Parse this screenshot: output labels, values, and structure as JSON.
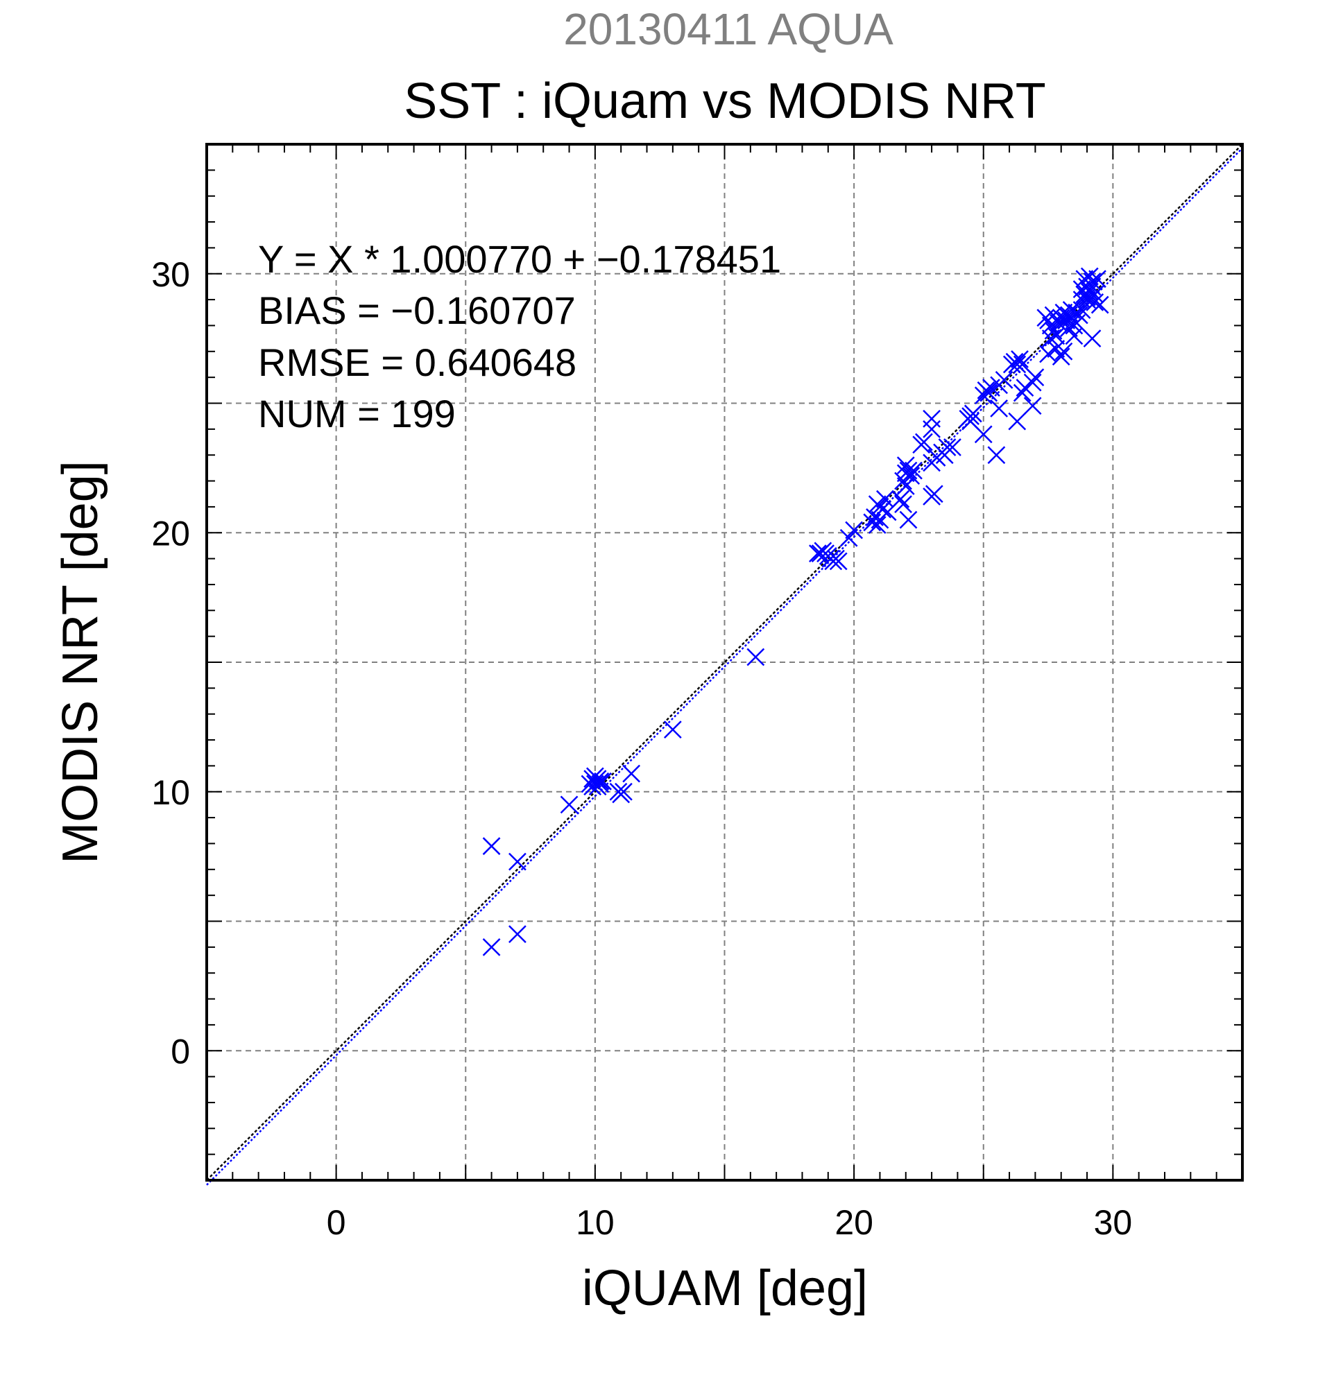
{
  "chart_data": {
    "type": "scatter",
    "title": "20130411 AQUA",
    "subtitle": "SST : iQuam vs MODIS NRT",
    "xlabel": "iQUAM [deg]",
    "ylabel": "MODIS NRT [deg]",
    "xlim": [
      -5,
      35
    ],
    "ylim": [
      -5,
      35
    ],
    "xticks": [
      0,
      10,
      20,
      30
    ],
    "yticks": [
      0,
      10,
      20,
      30
    ],
    "xtick_labels": [
      "0",
      "10",
      "20",
      "30"
    ],
    "ytick_labels": [
      "0",
      "10",
      "20",
      "30"
    ],
    "grid": true,
    "marker": "x",
    "series_color": "#0000ff",
    "stats": {
      "equation": "Y = X * 1.000770 + −0.178451",
      "bias": "BIAS = −0.160707",
      "rmse": "RMSE = 0.640648",
      "num": "NUM = 199"
    },
    "fit_line": {
      "slope": 1.00077,
      "intercept": -0.178451,
      "color": "#0000ff"
    },
    "reference_line": {
      "slope": 1,
      "intercept": 0,
      "color": "#000000"
    },
    "points": [
      [
        6.0,
        7.9
      ],
      [
        6.0,
        4.0
      ],
      [
        7.0,
        7.3
      ],
      [
        7.0,
        4.5
      ],
      [
        9.0,
        9.5
      ],
      [
        9.9,
        10.2
      ],
      [
        9.9,
        10.5
      ],
      [
        10.0,
        10.3
      ],
      [
        10.0,
        10.6
      ],
      [
        10.1,
        10.2
      ],
      [
        10.2,
        10.4
      ],
      [
        10.2,
        10.3
      ],
      [
        10.3,
        10.4
      ],
      [
        10.1,
        10.5
      ],
      [
        9.8,
        10.3
      ],
      [
        10.9,
        10.0
      ],
      [
        11.0,
        9.9
      ],
      [
        11.1,
        10.0
      ],
      [
        11.4,
        10.7
      ],
      [
        13.0,
        12.4
      ],
      [
        16.2,
        15.2
      ],
      [
        18.6,
        19.2
      ],
      [
        18.7,
        19.2
      ],
      [
        18.8,
        19.3
      ],
      [
        18.9,
        19.2
      ],
      [
        19.0,
        19.1
      ],
      [
        19.1,
        19.0
      ],
      [
        19.2,
        18.9
      ],
      [
        19.3,
        19.0
      ],
      [
        19.4,
        18.9
      ],
      [
        19.8,
        19.8
      ],
      [
        20.0,
        20.1
      ],
      [
        20.7,
        20.4
      ],
      [
        20.8,
        20.6
      ],
      [
        20.9,
        20.3
      ],
      [
        21.0,
        20.5
      ],
      [
        21.0,
        21.0
      ],
      [
        21.1,
        20.9
      ],
      [
        21.2,
        21.3
      ],
      [
        20.9,
        21.1
      ],
      [
        21.3,
        20.8
      ],
      [
        21.8,
        21.3
      ],
      [
        21.9,
        21.1
      ],
      [
        22.0,
        21.8
      ],
      [
        22.0,
        22.3
      ],
      [
        21.9,
        22.0
      ],
      [
        22.1,
        22.4
      ],
      [
        22.2,
        22.2
      ],
      [
        22.3,
        22.4
      ],
      [
        22.0,
        22.6
      ],
      [
        22.1,
        20.5
      ],
      [
        22.6,
        23.4
      ],
      [
        22.7,
        23.5
      ],
      [
        23.0,
        24.0
      ],
      [
        23.0,
        24.4
      ],
      [
        23.0,
        21.4
      ],
      [
        23.1,
        21.5
      ],
      [
        23.0,
        22.7
      ],
      [
        23.2,
        22.9
      ],
      [
        23.4,
        23.1
      ],
      [
        23.6,
        23.3
      ],
      [
        23.5,
        23.0
      ],
      [
        23.8,
        23.3
      ],
      [
        24.4,
        24.4
      ],
      [
        24.5,
        24.5
      ],
      [
        24.6,
        24.6
      ],
      [
        24.5,
        24.3
      ],
      [
        25.0,
        25.3
      ],
      [
        25.1,
        25.5
      ],
      [
        25.2,
        25.4
      ],
      [
        25.3,
        25.6
      ],
      [
        25.0,
        23.8
      ],
      [
        25.5,
        23.0
      ],
      [
        25.6,
        24.8
      ],
      [
        25.6,
        25.7
      ],
      [
        25.8,
        25.9
      ],
      [
        26.1,
        26.5
      ],
      [
        26.2,
        26.6
      ],
      [
        26.3,
        26.5
      ],
      [
        26.4,
        26.7
      ],
      [
        26.5,
        26.5
      ],
      [
        26.3,
        24.3
      ],
      [
        26.5,
        25.4
      ],
      [
        26.6,
        25.6
      ],
      [
        26.9,
        24.9
      ],
      [
        26.9,
        25.8
      ],
      [
        27.0,
        26.0
      ],
      [
        27.5,
        28.2
      ],
      [
        27.6,
        28.0
      ],
      [
        27.7,
        27.8
      ],
      [
        27.8,
        27.6
      ],
      [
        27.9,
        28.1
      ],
      [
        27.6,
        27.5
      ],
      [
        27.5,
        26.9
      ],
      [
        27.8,
        27.1
      ],
      [
        27.7,
        28.4
      ],
      [
        28.0,
        28.3
      ],
      [
        28.1,
        28.5
      ],
      [
        28.2,
        28.2
      ],
      [
        28.3,
        27.9
      ],
      [
        28.0,
        26.8
      ],
      [
        28.1,
        27.0
      ],
      [
        28.4,
        28.3
      ],
      [
        28.5,
        28.0
      ],
      [
        28.6,
        28.1
      ],
      [
        28.4,
        28.6
      ],
      [
        28.6,
        28.5
      ],
      [
        28.7,
        28.4
      ],
      [
        28.5,
        27.6
      ],
      [
        28.8,
        29.0
      ],
      [
        28.8,
        29.4
      ],
      [
        28.9,
        29.2
      ],
      [
        29.0,
        29.5
      ],
      [
        28.9,
        29.8
      ],
      [
        29.1,
        29.9
      ],
      [
        29.2,
        29.7
      ],
      [
        29.0,
        29.1
      ],
      [
        29.1,
        29.3
      ],
      [
        29.2,
        29.5
      ],
      [
        29.3,
        29.2
      ],
      [
        29.3,
        28.9
      ],
      [
        29.4,
        29.8
      ],
      [
        29.5,
        28.8
      ],
      [
        29.2,
        27.5
      ],
      [
        28.8,
        28.6
      ],
      [
        27.4,
        28.3
      ],
      [
        28.3,
        28.4
      ],
      [
        29.0,
        29.0
      ]
    ]
  }
}
